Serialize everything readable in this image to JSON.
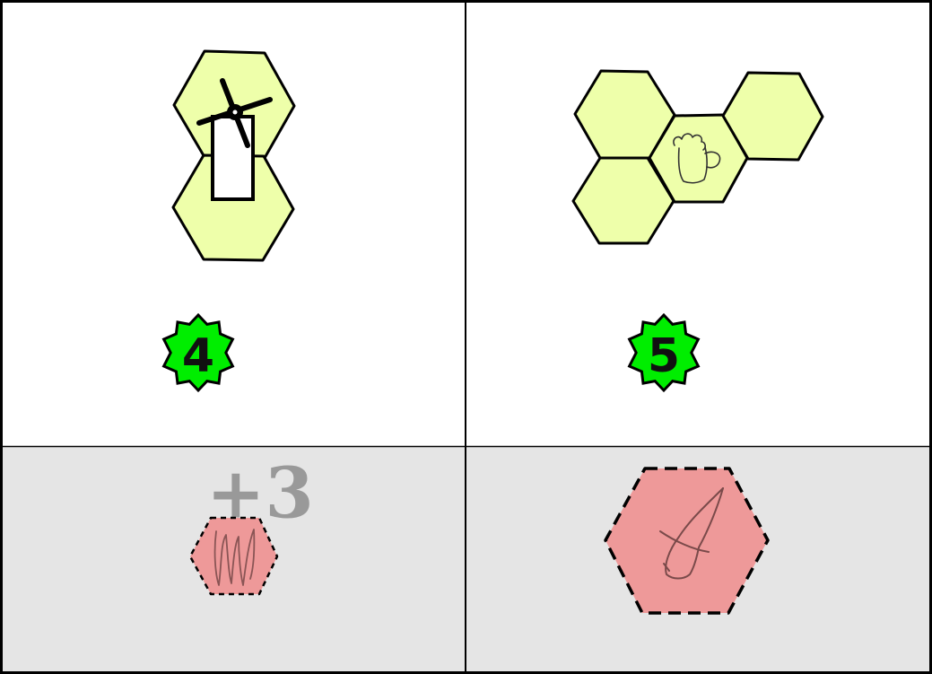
{
  "colors": {
    "card_background": "#ffffff",
    "bonus_background": "#e5e5e5",
    "border": "#000000",
    "meadow_hex": "#eeffaa",
    "score_badge": "#00ee00",
    "penalty_hex": "#ee9999",
    "bonus_text": "#999999"
  },
  "cards": [
    {
      "hex_terrain": "meadow",
      "hex_count": 2,
      "building_icon": "windmill-icon",
      "score": "4",
      "bonus": {
        "label": "+3",
        "token_icon": "scribble-icon",
        "token_shape": "small-dashed-hexagon"
      }
    },
    {
      "hex_terrain": "meadow",
      "hex_count": 4,
      "building_icon": "beer-mug-icon",
      "score": "5",
      "bonus": {
        "label": "",
        "token_icon": "wizard-hat-icon",
        "token_shape": "large-dashed-hexagon"
      }
    }
  ]
}
